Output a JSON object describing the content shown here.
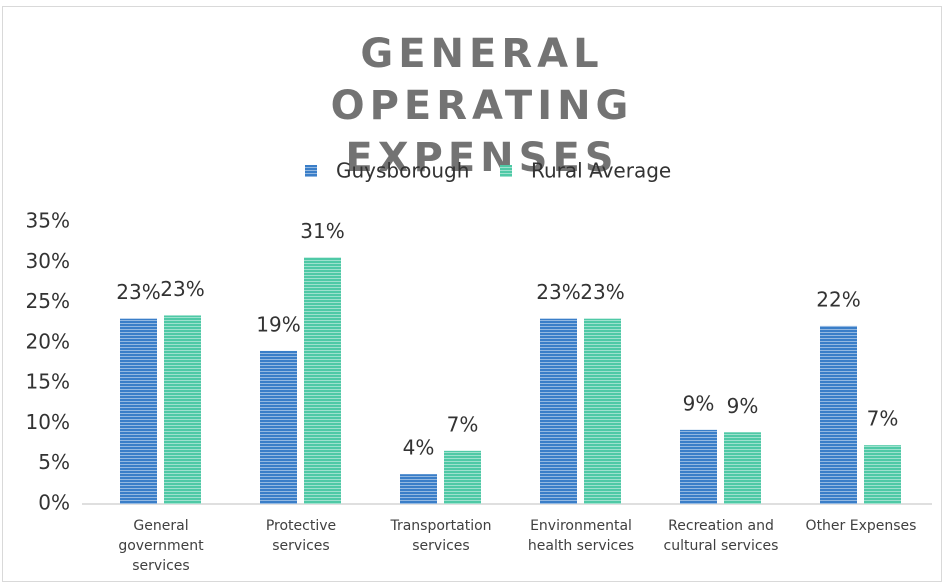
{
  "chart_data": {
    "type": "bar",
    "title": "GENERAL OPERATING EXPENSES",
    "categories": [
      "General government services",
      "Protective services",
      "Transportation services",
      "Environmental health services",
      "Recreation and cultural services",
      "Other Expenses"
    ],
    "series": [
      {
        "name": "Guysborough",
        "color": "#3a7ec8",
        "values": [
          23,
          19,
          3.7,
          23,
          9.2,
          22.1
        ],
        "value_labels": [
          "23%",
          "19%",
          "4%",
          "23%",
          "9%",
          "22%"
        ]
      },
      {
        "name": "Rural Average",
        "color": "#4fc9a6",
        "values": [
          23.4,
          30.6,
          6.6,
          23,
          8.9,
          7.3
        ],
        "value_labels": [
          "23%",
          "31%",
          "7%",
          "23%",
          "9%",
          "7%"
        ]
      }
    ],
    "ylim": [
      0,
      35
    ],
    "yticks": [
      {
        "value": 0,
        "label": "0%"
      },
      {
        "value": 5,
        "label": "5%"
      },
      {
        "value": 10,
        "label": "10%"
      },
      {
        "value": 15,
        "label": "15%"
      },
      {
        "value": 20,
        "label": "20%"
      },
      {
        "value": 25,
        "label": "25%"
      },
      {
        "value": 30,
        "label": "30%"
      },
      {
        "value": 35,
        "label": "35%"
      }
    ],
    "grid": false,
    "legend": "top"
  }
}
